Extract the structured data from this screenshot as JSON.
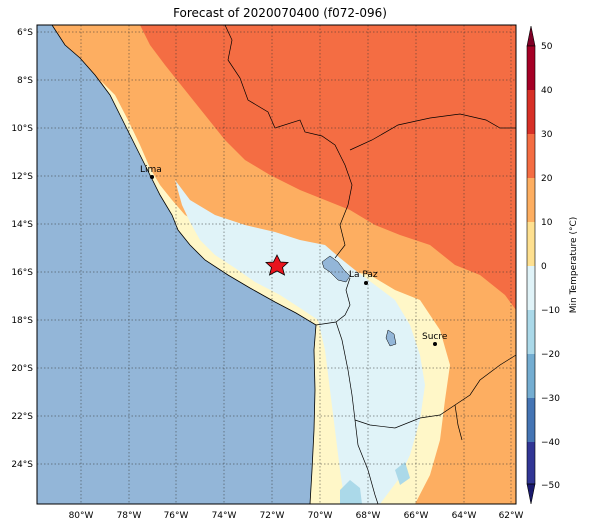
{
  "title": "Forecast of 2020070400 (f072-096)",
  "map": {
    "lon_labels": [
      "80°W",
      "78°W",
      "76°W",
      "74°W",
      "72°W",
      "70°W",
      "68°W",
      "66°W",
      "64°W",
      "62°W"
    ],
    "lat_labels": [
      "6°S",
      "8°S",
      "10°S",
      "12°S",
      "14°S",
      "16°S",
      "18°S",
      "20°S",
      "22°S",
      "24°S"
    ],
    "lon_range": [
      -81.8,
      -61.9
    ],
    "lat_range": [
      -25.8,
      -5.6
    ],
    "cities": [
      {
        "name": "Lima",
        "lon": -77.0,
        "lat": -12.05
      },
      {
        "name": "La Paz",
        "lon": -68.1,
        "lat": -16.5
      },
      {
        "name": "Sucre",
        "lon": -65.25,
        "lat": -19.05
      }
    ],
    "star": {
      "lon": -71.9,
      "lat": -15.8,
      "color": "#e8141e"
    },
    "ocean_color": "#93b6d8"
  },
  "colorbar": {
    "label": "Min Temperature (°C)",
    "ticks": [
      "50",
      "40",
      "30",
      "20",
      "10",
      "0",
      "−10",
      "−20",
      "−30",
      "−40",
      "−50"
    ],
    "colors": [
      "#a50026",
      "#d73027",
      "#f46d43",
      "#fdae61",
      "#fee090",
      "#e0f3f8",
      "#abd9e9",
      "#74add1",
      "#4575b4",
      "#313695"
    ]
  }
}
